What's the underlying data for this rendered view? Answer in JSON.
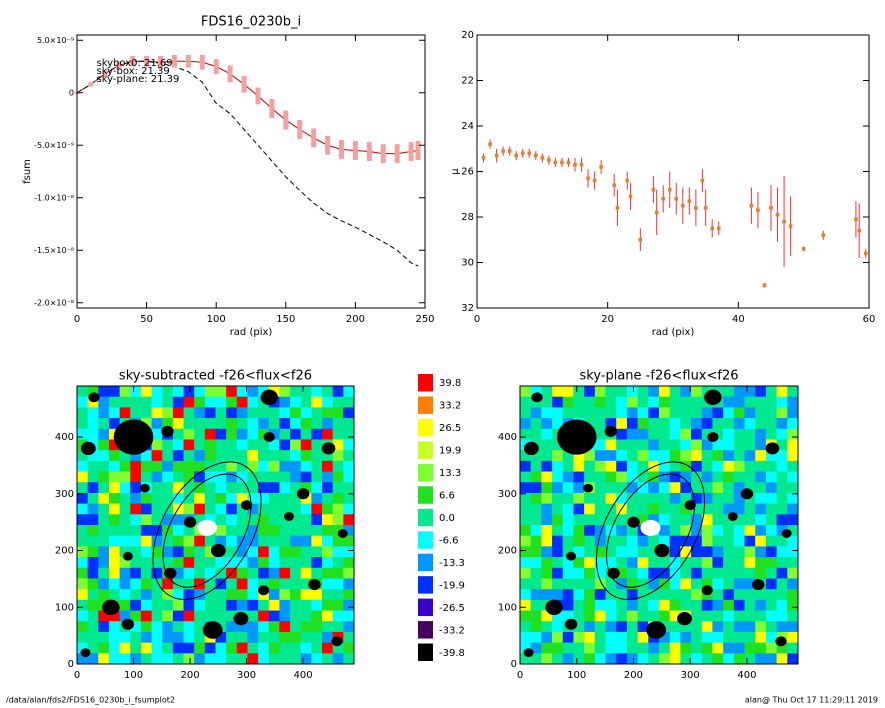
{
  "chart_data": [
    {
      "type": "line",
      "title": "FDS16_0230b_i",
      "xlabel": "rad (pix)",
      "ylabel": "fsum",
      "xlim": [
        0,
        250
      ],
      "xticks": [
        0,
        50,
        100,
        150,
        200,
        250
      ],
      "ylim": [
        -2.05e-08,
        5.5e-09
      ],
      "yticks": [
        {
          "value": 5e-09,
          "label": "5.0×10⁻⁹"
        },
        0,
        {
          "value": -5e-09,
          "label": "-5.0×10⁻⁹"
        },
        {
          "value": -1e-08,
          "label": "-1.0×10⁻⁸"
        },
        {
          "value": -1.5e-08,
          "label": "-1.5×10⁻⁸"
        },
        {
          "value": -2e-08,
          "label": "-2.0×10⁻⁸"
        }
      ],
      "annotations": [
        {
          "text": "skybox0: 21.69",
          "color": "#000000"
        },
        {
          "text": "sky-box: 21.39",
          "color": "#ff2020"
        },
        {
          "text": "sky-plane: 21.39",
          "color": "#20e020"
        }
      ],
      "x": [
        0,
        10,
        20,
        30,
        40,
        50,
        60,
        70,
        80,
        90,
        100,
        110,
        120,
        130,
        140,
        150,
        160,
        170,
        180,
        190,
        200,
        210,
        220,
        230,
        240,
        245
      ],
      "series": [
        {
          "color": "#c00000",
          "values": [
            0,
            8e-10,
            1.8e-09,
            2.6e-09,
            3e-09,
            3e-09,
            2.9e-09,
            3e-09,
            3e-09,
            2.9e-09,
            2.5e-09,
            1.8e-09,
            8e-10,
            -3e-10,
            -1.5e-09,
            -2.6e-09,
            -3.5e-09,
            -4.3e-09,
            -5e-09,
            -5.4e-09,
            -5.5e-09,
            -5.6e-09,
            -5.8e-09,
            -5.8e-09,
            -5.6e-09,
            -5.5e-09
          ],
          "errors": [
            1e-10,
            2e-10,
            3e-10,
            4e-10,
            5e-10,
            5e-10,
            6e-10,
            6e-10,
            6e-10,
            7e-10,
            7e-10,
            8e-10,
            8e-10,
            8e-10,
            9e-10,
            9e-10,
            9e-10,
            9e-10,
            9e-10,
            9e-10,
            9e-10,
            9e-10,
            9e-10,
            9e-10,
            9e-10,
            9e-10
          ]
        },
        {
          "color": "#000000",
          "dash": true,
          "values": [
            0,
            8e-10,
            1.8e-09,
            2.6e-09,
            3e-09,
            3e-09,
            2.8e-09,
            2.5e-09,
            2e-09,
            1e-09,
            -1e-09,
            -2e-09,
            -3.5e-09,
            -5e-09,
            -6.5e-09,
            -8e-09,
            -9.3e-09,
            -1.05e-08,
            -1.15e-08,
            -1.22e-08,
            -1.28e-08,
            -1.35e-08,
            -1.42e-08,
            -1.5e-08,
            -1.62e-08,
            -1.65e-08
          ]
        }
      ]
    },
    {
      "type": "scatter",
      "xlabel": "rad (pix)",
      "ylabel": "μ",
      "xlim": [
        0,
        60
      ],
      "xticks": [
        0,
        20,
        40,
        60
      ],
      "ylim": [
        32,
        20
      ],
      "yticks": [
        20,
        22,
        24,
        26,
        28,
        30,
        32
      ],
      "color": "#e08030",
      "error_color": "#ff3030",
      "x": [
        1,
        2,
        3,
        4,
        5,
        6,
        7,
        8,
        9,
        10,
        11,
        12,
        13,
        14,
        15,
        16,
        17,
        18,
        19,
        21,
        21.5,
        23,
        23.5,
        25,
        27,
        27.5,
        28.5,
        29.5,
        30.5,
        31.5,
        32.5,
        33.5,
        34.5,
        35,
        36,
        37,
        42,
        43,
        44,
        45,
        46,
        47,
        48,
        50,
        53,
        58,
        58.5,
        59.5
      ],
      "values": [
        25.4,
        24.8,
        25.3,
        25.1,
        25.1,
        25.3,
        25.2,
        25.2,
        25.3,
        25.4,
        25.5,
        25.6,
        25.6,
        25.6,
        25.7,
        25.7,
        26.3,
        26.4,
        25.8,
        26.6,
        27.6,
        26.4,
        27.1,
        29.0,
        26.8,
        27.8,
        27.2,
        26.8,
        27.2,
        27.5,
        27.3,
        27.6,
        26.4,
        27.6,
        28.5,
        28.5,
        27.5,
        27.7,
        31.0,
        27.6,
        27.9,
        28.2,
        28.4,
        29.4,
        28.8,
        28.1,
        28.6,
        29.6
      ],
      "errors": [
        0.2,
        0.2,
        0.3,
        0.2,
        0.2,
        0.2,
        0.2,
        0.2,
        0.2,
        0.2,
        0.2,
        0.2,
        0.2,
        0.2,
        0.3,
        0.3,
        0.4,
        0.4,
        0.3,
        0.5,
        0.8,
        0.4,
        0.6,
        0.5,
        0.6,
        1.0,
        0.6,
        0.8,
        0.7,
        0.8,
        0.6,
        0.8,
        0.5,
        0.8,
        0.4,
        0.3,
        0.8,
        0.8,
        0.1,
        1.0,
        1.2,
        2.0,
        1.3,
        0.1,
        0.2,
        0.8,
        1.2,
        0.2
      ]
    },
    {
      "type": "image",
      "title": "sky-subtracted -f26<flux<f26",
      "xlim": [
        0,
        490
      ],
      "xticks": [
        0,
        100,
        200,
        300,
        400
      ],
      "ylim": [
        0,
        490
      ],
      "yticks": [
        0,
        100,
        200,
        300,
        400
      ]
    },
    {
      "type": "colorbar",
      "levels": [
        39.8,
        33.2,
        26.5,
        19.9,
        13.3,
        6.6,
        0.0,
        -6.6,
        -13.3,
        -19.9,
        -26.5,
        -33.2,
        -39.8
      ],
      "level_labels": [
        "39.8",
        "33.2",
        "26.5",
        "19.9",
        "13.3",
        "6.6",
        "0.0",
        "-6.6",
        "-13.3",
        "-19.9",
        "-26.5",
        "-33.2",
        "-39.8"
      ],
      "colors": [
        "#ff0000",
        "#ff8000",
        "#ffff00",
        "#c8ff20",
        "#80ff30",
        "#20e020",
        "#00e890",
        "#00ffff",
        "#0098ff",
        "#0030ff",
        "#3800c8",
        "#480060",
        "#000000"
      ]
    },
    {
      "type": "image",
      "title": "sky-plane -f26<flux<f26",
      "xlim": [
        0,
        490
      ],
      "xticks": [
        0,
        100,
        200,
        300,
        400
      ],
      "ylim": [
        0,
        490
      ],
      "yticks": [
        0,
        100,
        200,
        300,
        400
      ]
    }
  ],
  "footer": {
    "left": "/data/alan/fds2/FDS16_0230b_i_fsumplot2",
    "right": "alan@  Thu Oct 17 11:29:11 2019"
  }
}
